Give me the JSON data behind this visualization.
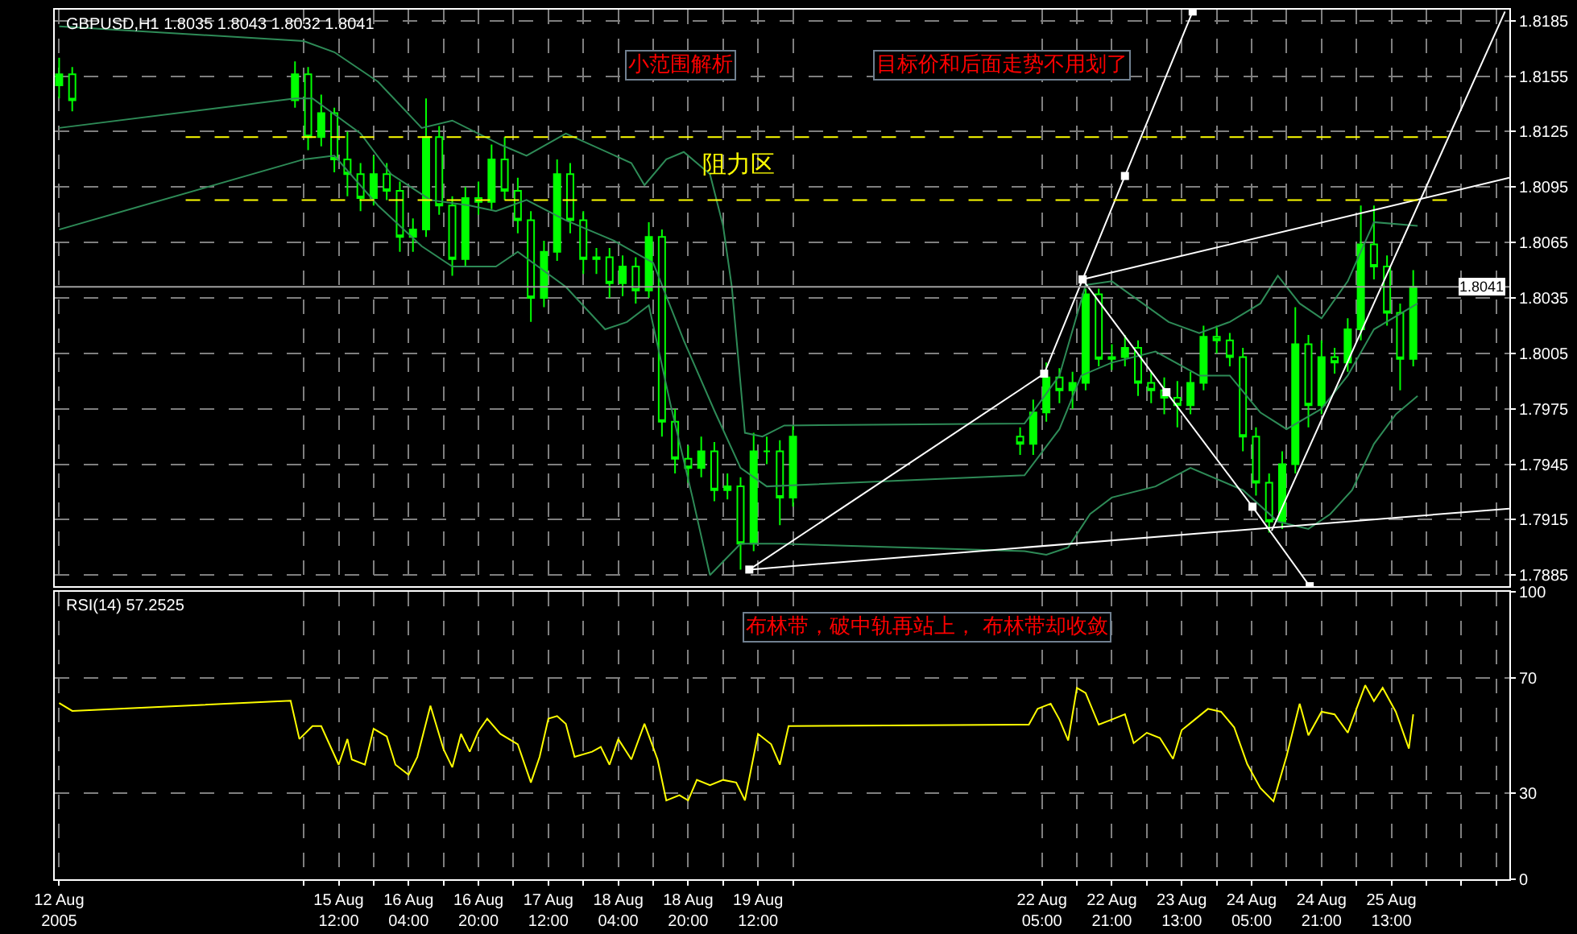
{
  "chart_data": [
    {
      "type": "candlestick",
      "title": "GBPUSD,H1 1.8035 1.8043 1.8032 1.8041",
      "color": "#00ff00",
      "x": [
        "2005-08-12T20:00",
        "2005-08-12T23:00",
        "2005-08-15T02:00",
        "2005-08-15T05:00",
        "2005-08-15T08:00",
        "2005-08-15T11:00",
        "2005-08-15T14:00",
        "2005-08-15T17:00",
        "2005-08-15T20:00",
        "2005-08-15T23:00",
        "2005-08-16T02:00",
        "2005-08-16T05:00",
        "2005-08-16T08:00",
        "2005-08-16T11:00",
        "2005-08-16T14:00",
        "2005-08-16T17:00",
        "2005-08-16T20:00",
        "2005-08-16T23:00",
        "2005-08-17T02:00",
        "2005-08-17T05:00",
        "2005-08-17T08:00",
        "2005-08-17T11:00",
        "2005-08-17T14:00",
        "2005-08-17T17:00",
        "2005-08-17T20:00",
        "2005-08-17T23:00",
        "2005-08-18T02:00",
        "2005-08-18T05:00",
        "2005-08-18T08:00",
        "2005-08-18T11:00",
        "2005-08-18T14:00",
        "2005-08-18T17:00",
        "2005-08-18T20:00",
        "2005-08-18T23:00",
        "2005-08-19T02:00",
        "2005-08-19T05:00",
        "2005-08-19T08:00",
        "2005-08-19T11:00",
        "2005-08-19T14:00",
        "2005-08-19T17:00",
        "2005-08-19T20:00",
        "2005-08-22T00:00",
        "2005-08-22T03:00",
        "2005-08-22T06:00",
        "2005-08-22T09:00",
        "2005-08-22T12:00",
        "2005-08-22T15:00",
        "2005-08-22T18:00",
        "2005-08-22T21:00",
        "2005-08-23T00:00",
        "2005-08-23T03:00",
        "2005-08-23T06:00",
        "2005-08-23T09:00",
        "2005-08-23T12:00",
        "2005-08-23T15:00",
        "2005-08-23T18:00",
        "2005-08-23T21:00",
        "2005-08-24T00:00",
        "2005-08-24T03:00",
        "2005-08-24T06:00",
        "2005-08-24T09:00",
        "2005-08-24T12:00",
        "2005-08-24T15:00",
        "2005-08-24T18:00",
        "2005-08-24T21:00",
        "2005-08-25T00:00",
        "2005-08-25T03:00",
        "2005-08-25T06:00",
        "2005-08-25T09:00",
        "2005-08-25T12:00",
        "2005-08-25T15:00",
        "2005-08-25T18:00"
      ],
      "ohlc": [
        [
          1.815,
          1.8165,
          1.8143,
          1.8156
        ],
        [
          1.8156,
          1.816,
          1.8136,
          1.8142
        ],
        [
          1.8142,
          1.8163,
          1.8138,
          1.8156
        ],
        [
          1.8156,
          1.816,
          1.8115,
          1.8122
        ],
        [
          1.8122,
          1.8145,
          1.8117,
          1.8135
        ],
        [
          1.8135,
          1.8138,
          1.8103,
          1.811
        ],
        [
          1.811,
          1.8125,
          1.809,
          1.8102
        ],
        [
          1.8102,
          1.8108,
          1.8082,
          1.8089
        ],
        [
          1.8089,
          1.8112,
          1.8085,
          1.8102
        ],
        [
          1.8102,
          1.8108,
          1.8088,
          1.8093
        ],
        [
          1.8093,
          1.8098,
          1.806,
          1.8068
        ],
        [
          1.8068,
          1.8078,
          1.806,
          1.8072
        ],
        [
          1.8072,
          1.8143,
          1.8068,
          1.8122
        ],
        [
          1.8122,
          1.8128,
          1.808,
          1.8085
        ],
        [
          1.8085,
          1.809,
          1.8047,
          1.8056
        ],
        [
          1.8056,
          1.8095,
          1.8052,
          1.8089
        ],
        [
          1.8089,
          1.8098,
          1.808,
          1.8087
        ],
        [
          1.8087,
          1.8118,
          1.8083,
          1.811
        ],
        [
          1.811,
          1.8122,
          1.8088,
          1.8093
        ],
        [
          1.8093,
          1.81,
          1.807,
          1.8077
        ],
        [
          1.8077,
          1.8082,
          1.8022,
          1.8035
        ],
        [
          1.8035,
          1.8066,
          1.803,
          1.806
        ],
        [
          1.806,
          1.811,
          1.8055,
          1.8102
        ],
        [
          1.8102,
          1.8108,
          1.807,
          1.8077
        ],
        [
          1.8077,
          1.8082,
          1.8048,
          1.8056
        ],
        [
          1.8056,
          1.8062,
          1.8048,
          1.8057
        ],
        [
          1.8057,
          1.8062,
          1.8035,
          1.8043
        ],
        [
          1.8043,
          1.8058,
          1.8036,
          1.8052
        ],
        [
          1.8052,
          1.8057,
          1.8032,
          1.8039
        ],
        [
          1.8039,
          1.8076,
          1.8035,
          1.8068
        ],
        [
          1.8068,
          1.8072,
          1.796,
          1.7968
        ],
        [
          1.7968,
          1.7975,
          1.794,
          1.7948
        ],
        [
          1.7948,
          1.7955,
          1.7935,
          1.7943
        ],
        [
          1.7943,
          1.796,
          1.7938,
          1.7952
        ],
        [
          1.7952,
          1.7957,
          1.7925,
          1.7931
        ],
        [
          1.7931,
          1.794,
          1.7926,
          1.7933
        ],
        [
          1.7933,
          1.7938,
          1.7888,
          1.7902
        ],
        [
          1.7902,
          1.7962,
          1.7898,
          1.7952
        ],
        [
          1.7952,
          1.796,
          1.7945,
          1.7952
        ],
        [
          1.7952,
          1.7958,
          1.7912,
          1.7927
        ],
        [
          1.7927,
          1.7966,
          1.7922,
          1.796
        ],
        [
          1.796,
          1.7965,
          1.795,
          1.7956
        ],
        [
          1.7956,
          1.798,
          1.795,
          1.7973
        ],
        [
          1.7973,
          1.8,
          1.7968,
          1.7992
        ],
        [
          1.7992,
          1.7997,
          1.7978,
          1.7985
        ],
        [
          1.7985,
          1.7995,
          1.7975,
          1.7989
        ],
        [
          1.7989,
          1.804,
          1.7985,
          1.8037
        ],
        [
          1.8037,
          1.804,
          1.7998,
          1.8002
        ],
        [
          1.8002,
          1.801,
          1.7996,
          1.8003
        ],
        [
          1.8003,
          1.8015,
          1.7998,
          1.8008
        ],
        [
          1.8008,
          1.8012,
          1.7982,
          1.7989
        ],
        [
          1.7989,
          1.7995,
          1.7978,
          1.7985
        ],
        [
          1.7985,
          1.7992,
          1.7972,
          1.7981
        ],
        [
          1.7981,
          1.799,
          1.7965,
          1.7977
        ],
        [
          1.7977,
          1.7995,
          1.7972,
          1.7989
        ],
        [
          1.7989,
          1.802,
          1.7985,
          1.8014
        ],
        [
          1.8014,
          1.802,
          1.8005,
          1.8012
        ],
        [
          1.8012,
          1.8016,
          1.7998,
          1.8003
        ],
        [
          1.8003,
          1.8008,
          1.7952,
          1.796
        ],
        [
          1.796,
          1.7965,
          1.7928,
          1.7935
        ],
        [
          1.7935,
          1.794,
          1.7908,
          1.7914
        ],
        [
          1.7914,
          1.7952,
          1.791,
          1.7945
        ],
        [
          1.7945,
          1.803,
          1.794,
          1.801
        ],
        [
          1.801,
          1.8015,
          1.7965,
          1.7977
        ],
        [
          1.7977,
          1.8012,
          1.7972,
          1.8003
        ],
        [
          1.8003,
          1.8008,
          1.7994,
          1.8
        ],
        [
          1.8,
          1.8024,
          1.7995,
          1.8018
        ],
        [
          1.8018,
          1.8085,
          1.8012,
          1.8064
        ],
        [
          1.8064,
          1.8085,
          1.8045,
          1.8052
        ],
        [
          1.8052,
          1.8058,
          1.802,
          1.8027
        ],
        [
          1.8027,
          1.8032,
          1.7985,
          1.8002
        ],
        [
          1.8002,
          1.805,
          1.7998,
          1.8041
        ]
      ],
      "series": [
        {
          "type": "line",
          "color": "#2e8b57",
          "x": [
            "2005-08-12T20:00",
            "2005-08-15T04:00",
            "2005-08-15T11:00",
            "2005-08-15T21:00",
            "2005-08-16T07:00",
            "2005-08-16T14:00",
            "2005-08-17T01:00",
            "2005-08-17T07:00",
            "2005-08-17T16:00",
            "2005-08-18T07:00",
            "2005-08-18T10:00",
            "2005-08-18T15:00",
            "2005-08-18T19:00",
            "2005-08-19T01:00",
            "2005-08-19T04:00",
            "2005-08-19T06:00",
            "2005-08-19T09:00",
            "2005-08-19T13:00",
            "2005-08-19T18:00",
            "2005-08-22T01:00",
            "2005-08-22T09:00",
            "2005-08-22T15:00",
            "2005-08-22T21:00",
            "2005-08-23T10:00",
            "2005-08-23T17:00",
            "2005-08-24T00:00",
            "2005-08-24T07:00",
            "2005-08-24T11:00",
            "2005-08-24T16:00",
            "2005-08-24T21:00",
            "2005-08-25T03:00",
            "2005-08-25T09:00",
            "2005-08-25T19:00"
          ],
          "values": [
            1.8182,
            1.8174,
            1.8168,
            1.8152,
            1.8127,
            1.8131,
            1.8118,
            1.8112,
            1.8124,
            1.8108,
            1.8096,
            1.811,
            1.8114,
            1.8102,
            1.8074,
            1.8041,
            1.7962,
            1.796,
            1.7966,
            1.7967,
            1.7993,
            1.8042,
            1.8044,
            1.8022,
            1.8016,
            1.8022,
            1.8032,
            1.8047,
            1.8032,
            1.8024,
            1.8044,
            1.8076,
            1.8074
          ]
        },
        {
          "type": "line",
          "color": "#2e8b57",
          "x": [
            "2005-08-12T20:00",
            "2005-08-15T02:00",
            "2005-08-15T06:00",
            "2005-08-15T17:00",
            "2005-08-16T00:00",
            "2005-08-16T09:00",
            "2005-08-16T18:00",
            "2005-08-17T00:00",
            "2005-08-17T07:00",
            "2005-08-17T16:00",
            "2005-08-18T03:00",
            "2005-08-18T12:00",
            "2005-08-18T19:00",
            "2005-08-19T02:00",
            "2005-08-19T08:00",
            "2005-08-19T14:00",
            "2005-08-22T01:00",
            "2005-08-22T09:00",
            "2005-08-22T14:00",
            "2005-08-22T21:00",
            "2005-08-23T07:00",
            "2005-08-23T17:00",
            "2005-08-24T00:00",
            "2005-08-24T07:00",
            "2005-08-24T13:00",
            "2005-08-24T21:00",
            "2005-08-25T03:00",
            "2005-08-25T09:00",
            "2005-08-25T19:00"
          ],
          "values": [
            1.8127,
            1.8143,
            1.8143,
            1.8124,
            1.8102,
            1.8088,
            1.8085,
            1.8082,
            1.8088,
            1.8077,
            1.8066,
            1.8054,
            1.8012,
            1.7974,
            1.7943,
            1.7933,
            1.7939,
            1.7964,
            1.7993,
            1.8,
            1.8006,
            1.7993,
            1.7993,
            1.7973,
            1.7964,
            1.7975,
            1.7993,
            1.8018,
            1.8032
          ]
        },
        {
          "type": "line",
          "color": "#2e8b57",
          "x": [
            "2005-08-12T20:00",
            "2005-08-15T04:00",
            "2005-08-15T11:00",
            "2005-08-15T21:00",
            "2005-08-16T07:00",
            "2005-08-16T14:00",
            "2005-08-17T00:00",
            "2005-08-17T05:00",
            "2005-08-17T16:00",
            "2005-08-18T01:00",
            "2005-08-18T06:00",
            "2005-08-18T11:00",
            "2005-08-18T16:00",
            "2005-08-18T21:00",
            "2005-08-19T01:00",
            "2005-08-19T08:00",
            "2005-08-19T17:00",
            "2005-08-22T01:00",
            "2005-08-22T06:00",
            "2005-08-22T11:00",
            "2005-08-22T16:00",
            "2005-08-22T21:00",
            "2005-08-23T07:00",
            "2005-08-23T15:00",
            "2005-08-24T03:00",
            "2005-08-24T11:00",
            "2005-08-24T18:00",
            "2005-08-24T23:00",
            "2005-08-25T04:00",
            "2005-08-25T09:00",
            "2005-08-25T14:00",
            "2005-08-25T19:00"
          ],
          "values": [
            1.8072,
            1.811,
            1.8112,
            1.8085,
            1.8063,
            1.8052,
            1.8052,
            1.806,
            1.8041,
            1.8018,
            1.8022,
            1.8031,
            1.7977,
            1.7927,
            1.7885,
            1.7902,
            1.7902,
            1.7898,
            1.7896,
            1.79,
            1.7918,
            1.7927,
            1.7933,
            1.7943,
            1.7931,
            1.7914,
            1.791,
            1.7918,
            1.7931,
            1.7956,
            1.7972,
            1.7982
          ]
        },
        {
          "type": "line",
          "color": "#ffffff",
          "marker": "square",
          "x": [
            "2005-08-19T10:00",
            "2005-08-22T05:30",
            "2005-08-22T14:18",
            "2005-08-23T00:00",
            "2005-08-23T15:30"
          ],
          "values": [
            1.7888,
            1.7994,
            1.8045,
            1.8101,
            1.819
          ]
        },
        {
          "type": "line",
          "color": "#ffffff",
          "x": [
            "2005-08-22T14:18",
            "2005-08-26T16:00"
          ],
          "values": [
            1.8045,
            1.81
          ]
        },
        {
          "type": "line",
          "color": "#ffffff",
          "x": [
            "2005-08-19T10:00",
            "2005-08-26T16:00"
          ],
          "values": [
            1.7888,
            1.7921
          ]
        },
        {
          "type": "line",
          "color": "#ffffff",
          "marker": "square",
          "x": [
            "2005-08-22T14:18",
            "2005-08-23T09:30",
            "2005-08-24T05:12",
            "2005-08-24T18:18"
          ],
          "values": [
            1.8045,
            1.7984,
            1.7922,
            1.7879
          ]
        },
        {
          "type": "line",
          "color": "#ffffff",
          "x": [
            "2005-08-24T09:36",
            "2005-08-26T15:00"
          ],
          "values": [
            1.7909,
            1.819
          ]
        }
      ],
      "ref_lines": [
        {
          "axis": "y",
          "value": 1.8122,
          "label": "阻力区",
          "color": "#ffff00",
          "line_style": "dashed"
        },
        {
          "axis": "y",
          "value": 1.8088,
          "color": "#ffff00",
          "line_style": "dashed"
        },
        {
          "axis": "y",
          "value": 1.8041,
          "label": "1.8041",
          "color": "#a0a0a0"
        }
      ],
      "annotations": [
        "小范围解析",
        "目标价和后面走势不用划了"
      ],
      "xlim": [
        "2005-08-12T19:00",
        "2005-08-26T16:00"
      ],
      "xticks": [
        {
          "value": "2005-08-12T20:00",
          "label": null
        },
        {
          "value": "2005-08-15T04:00",
          "label": null
        },
        {
          "value": "2005-08-15T12:00",
          "label": null
        },
        {
          "value": "2005-08-15T20:00",
          "label": null
        },
        {
          "value": "2005-08-16T04:00",
          "label": null
        },
        {
          "value": "2005-08-16T12:00",
          "label": null
        },
        {
          "value": "2005-08-16T20:00",
          "label": null
        },
        {
          "value": "2005-08-17T04:00",
          "label": null
        },
        {
          "value": "2005-08-17T12:00",
          "label": null
        },
        {
          "value": "2005-08-17T20:00",
          "label": null
        },
        {
          "value": "2005-08-18T04:00",
          "label": null
        },
        {
          "value": "2005-08-18T12:00",
          "label": null
        },
        {
          "value": "2005-08-18T20:00",
          "label": null
        },
        {
          "value": "2005-08-19T04:00",
          "label": null
        },
        {
          "value": "2005-08-19T12:00",
          "label": null
        },
        {
          "value": "2005-08-19T20:00",
          "label": null
        },
        {
          "value": "2005-08-22T05:00",
          "label": null
        },
        {
          "value": "2005-08-22T13:00",
          "label": null
        },
        {
          "value": "2005-08-22T21:00",
          "label": null
        },
        {
          "value": "2005-08-23T05:00",
          "label": null
        },
        {
          "value": "2005-08-23T13:00",
          "label": null
        },
        {
          "value": "2005-08-23T21:00",
          "label": null
        },
        {
          "value": "2005-08-24T05:00",
          "label": null
        },
        {
          "value": "2005-08-24T13:00",
          "label": null
        },
        {
          "value": "2005-08-24T21:00",
          "label": null
        },
        {
          "value": "2005-08-25T05:00",
          "label": null
        },
        {
          "value": "2005-08-25T13:00",
          "label": null
        },
        {
          "value": "2005-08-25T21:00",
          "label": null
        },
        {
          "value": "2005-08-26T05:00",
          "label": null
        },
        {
          "value": "2005-08-26T13:00",
          "label": null
        }
      ],
      "ylim": [
        1.7879,
        1.8191
      ],
      "yticks": [
        1.7885,
        1.7915,
        1.7945,
        1.7975,
        1.8005,
        1.8035,
        1.8065,
        1.8095,
        1.8125,
        1.8155,
        1.8185
      ],
      "grid": true,
      "tick_labels": "y"
    },
    {
      "type": "line",
      "title": "RSI(14) 57.2525",
      "color": "#ffff00",
      "x": [
        "2005-08-12T20:00",
        "2005-08-12T23:00",
        "2005-08-15T01:00",
        "2005-08-15T03:00",
        "2005-08-15T06:00",
        "2005-08-15T08:00",
        "2005-08-15T12:00",
        "2005-08-15T14:00",
        "2005-08-15T15:00",
        "2005-08-15T18:00",
        "2005-08-15T20:00",
        "2005-08-15T23:00",
        "2005-08-16T01:00",
        "2005-08-16T04:00",
        "2005-08-16T06:00",
        "2005-08-16T09:00",
        "2005-08-16T12:00",
        "2005-08-16T14:00",
        "2005-08-16T16:00",
        "2005-08-16T18:00",
        "2005-08-16T20:00",
        "2005-08-16T22:00",
        "2005-08-17T01:00",
        "2005-08-17T05:00",
        "2005-08-17T08:00",
        "2005-08-17T10:00",
        "2005-08-17T12:00",
        "2005-08-17T14:00",
        "2005-08-17T16:00",
        "2005-08-17T18:00",
        "2005-08-17T22:00",
        "2005-08-18T00:00",
        "2005-08-18T02:00",
        "2005-08-18T04:00",
        "2005-08-18T07:00",
        "2005-08-18T10:00",
        "2005-08-18T13:00",
        "2005-08-18T15:00",
        "2005-08-18T18:00",
        "2005-08-18T20:00",
        "2005-08-18T22:00",
        "2005-08-19T01:00",
        "2005-08-19T04:00",
        "2005-08-19T07:00",
        "2005-08-19T09:00",
        "2005-08-19T12:00",
        "2005-08-19T15:00",
        "2005-08-19T17:00",
        "2005-08-19T19:00",
        "2005-08-22T00:00",
        "2005-08-22T02:00",
        "2005-08-22T04:00",
        "2005-08-22T07:00",
        "2005-08-22T09:00",
        "2005-08-22T11:00",
        "2005-08-22T13:00",
        "2005-08-22T15:00",
        "2005-08-22T18:00",
        "2005-08-22T21:00",
        "2005-08-23T00:00",
        "2005-08-23T02:00",
        "2005-08-23T05:00",
        "2005-08-23T08:00",
        "2005-08-23T11:00",
        "2005-08-23T13:00",
        "2005-08-23T16:00",
        "2005-08-23T19:00",
        "2005-08-23T22:00",
        "2005-08-24T01:00",
        "2005-08-24T04:00",
        "2005-08-24T07:00",
        "2005-08-24T10:00",
        "2005-08-24T13:00",
        "2005-08-24T16:00",
        "2005-08-24T18:00",
        "2005-08-24T21:00",
        "2005-08-25T00:00",
        "2005-08-25T03:00",
        "2005-08-25T05:00",
        "2005-08-25T07:00",
        "2005-08-25T09:00",
        "2005-08-25T11:00",
        "2005-08-25T14:00",
        "2005-08-25T17:00",
        "2005-08-25T18:00"
      ],
      "values": [
        61.2,
        58.5,
        62,
        48.7,
        53.2,
        53.2,
        39.8,
        48.7,
        41.6,
        39.8,
        52.3,
        49.6,
        39.8,
        36.3,
        42.5,
        60.3,
        45.2,
        38.9,
        50.5,
        44.3,
        51.4,
        55.8,
        50.5,
        46.9,
        33.6,
        42.5,
        55.8,
        56.7,
        54,
        42.5,
        44.3,
        46,
        39.8,
        48.7,
        41.6,
        54,
        41.6,
        27.4,
        29.2,
        27.4,
        34.5,
        32.7,
        34.5,
        33.6,
        27.4,
        50.5,
        46.9,
        39.8,
        53.2,
        53.7,
        53.7,
        59.2,
        61,
        55.5,
        48.2,
        66.5,
        64.7,
        53.7,
        55.5,
        57.3,
        47.3,
        50.9,
        49.1,
        41.8,
        51.8,
        55.5,
        59.2,
        58.2,
        52.8,
        40,
        31.7,
        27.1,
        42.7,
        61,
        50,
        58.2,
        57.3,
        50.9,
        59.2,
        67.4,
        61.9,
        66.5,
        58.2,
        45.4,
        57.3
      ],
      "annotations": [
        "布林带，破中轨再站上， 布林带却收敛"
      ],
      "xlim": [
        "2005-08-12T19:00",
        "2005-08-26T16:00"
      ],
      "xticks": [
        {
          "value": "2005-08-12T20:00",
          "label": "12 Aug 2005"
        },
        {
          "value": "2005-08-15T04:00",
          "label": null
        },
        {
          "value": "2005-08-15T12:00",
          "label": "15 Aug 12:00"
        },
        {
          "value": "2005-08-15T20:00",
          "label": null
        },
        {
          "value": "2005-08-16T04:00",
          "label": "16 Aug 04:00"
        },
        {
          "value": "2005-08-16T12:00",
          "label": null
        },
        {
          "value": "2005-08-16T20:00",
          "label": "16 Aug 20:00"
        },
        {
          "value": "2005-08-17T04:00",
          "label": null
        },
        {
          "value": "2005-08-17T12:00",
          "label": "17 Aug 12:00"
        },
        {
          "value": "2005-08-17T20:00",
          "label": null
        },
        {
          "value": "2005-08-18T04:00",
          "label": "18 Aug 04:00"
        },
        {
          "value": "2005-08-18T12:00",
          "label": null
        },
        {
          "value": "2005-08-18T20:00",
          "label": "18 Aug 20:00"
        },
        {
          "value": "2005-08-19T04:00",
          "label": null
        },
        {
          "value": "2005-08-19T12:00",
          "label": "19 Aug 12:00"
        },
        {
          "value": "2005-08-19T20:00",
          "label": null
        },
        {
          "value": "2005-08-22T05:00",
          "label": "22 Aug 05:00"
        },
        {
          "value": "2005-08-22T13:00",
          "label": null
        },
        {
          "value": "2005-08-22T21:00",
          "label": "22 Aug 21:00"
        },
        {
          "value": "2005-08-23T05:00",
          "label": null
        },
        {
          "value": "2005-08-23T13:00",
          "label": "23 Aug 13:00"
        },
        {
          "value": "2005-08-23T21:00",
          "label": null
        },
        {
          "value": "2005-08-24T05:00",
          "label": "24 Aug 05:00"
        },
        {
          "value": "2005-08-24T13:00",
          "label": null
        },
        {
          "value": "2005-08-24T21:00",
          "label": "24 Aug 21:00"
        },
        {
          "value": "2005-08-25T05:00",
          "label": null
        },
        {
          "value": "2005-08-25T13:00",
          "label": "25 Aug 13:00"
        },
        {
          "value": "2005-08-25T21:00",
          "label": null
        },
        {
          "value": "2005-08-26T05:00",
          "label": null
        },
        {
          "value": "2005-08-26T13:00",
          "label": null
        }
      ],
      "ylim": [
        0,
        100
      ],
      "yticks": [
        0,
        30,
        70,
        100
      ],
      "grid": true
    }
  ]
}
